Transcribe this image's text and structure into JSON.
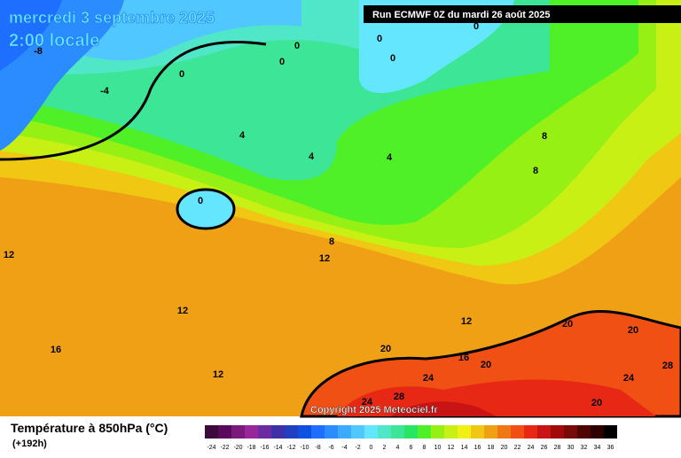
{
  "header": {
    "date": "mercredi 3 septembre 2025",
    "time": "2:00 locale",
    "run": "Run ECMWF 0Z du mardi 26 août 2025"
  },
  "copyright": "Copyright 2025 Meteociel.fr",
  "legend": {
    "title": "Température à 850hPa (°C)",
    "lead": "(+192h)",
    "ticks": [
      -24,
      -22,
      -20,
      -18,
      -16,
      -14,
      -12,
      -10,
      -8,
      -6,
      -4,
      -2,
      0,
      2,
      4,
      6,
      8,
      10,
      12,
      14,
      16,
      18,
      20,
      22,
      24,
      26,
      28,
      30,
      32,
      34,
      36
    ],
    "colors": [
      "#3c0a3c",
      "#5a0a5a",
      "#7a1a7a",
      "#96289a",
      "#6a2ca0",
      "#4030a8",
      "#2040c0",
      "#1050e0",
      "#1e6eff",
      "#2a8cff",
      "#3caaff",
      "#50c8ff",
      "#64e6ff",
      "#50e6c8",
      "#3ce696",
      "#28e664",
      "#50f028",
      "#96f014",
      "#c8f014",
      "#f0f014",
      "#f0c814",
      "#f0a014",
      "#f07814",
      "#f05014",
      "#e62814",
      "#c81414",
      "#a00a0a",
      "#780a0a",
      "#500505",
      "#300000",
      "#000000"
    ]
  },
  "contour_labels": [
    -8,
    -4,
    0,
    0,
    0,
    0,
    0,
    0,
    0,
    4,
    4,
    4,
    8,
    8,
    8,
    12,
    12,
    12,
    12,
    12,
    16,
    16,
    20,
    20,
    20,
    20,
    24,
    24,
    24,
    28,
    28,
    20
  ]
}
